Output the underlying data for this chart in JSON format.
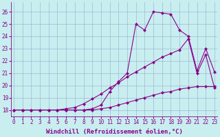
{
  "xlabel": "Windchill (Refroidissement éolien,°C)",
  "background_color": "#c8eef0",
  "line_color": "#880088",
  "x_ticks": [
    0,
    1,
    2,
    3,
    4,
    5,
    6,
    7,
    8,
    9,
    10,
    11,
    12,
    13,
    14,
    15,
    16,
    17,
    18,
    19,
    20,
    21,
    22,
    23
  ],
  "ylim": [
    17.5,
    26.8
  ],
  "xlim": [
    -0.3,
    23.3
  ],
  "yticks": [
    18,
    19,
    20,
    21,
    22,
    23,
    24,
    25,
    26
  ],
  "line_bottom_x": [
    0,
    1,
    2,
    3,
    4,
    5,
    6,
    7,
    8,
    9,
    10,
    11,
    12,
    13,
    14,
    15,
    16,
    17,
    18,
    19,
    20,
    21,
    22,
    23
  ],
  "line_bottom_y": [
    18.0,
    18.0,
    18.0,
    18.0,
    18.0,
    18.0,
    18.0,
    18.0,
    18.0,
    18.0,
    18.1,
    18.2,
    18.4,
    18.6,
    18.8,
    19.0,
    19.2,
    19.4,
    19.5,
    19.7,
    19.8,
    19.9,
    19.9,
    19.9
  ],
  "line_diag_x": [
    0,
    1,
    2,
    3,
    4,
    5,
    6,
    7,
    8,
    9,
    10,
    11,
    12,
    13,
    14,
    15,
    16,
    17,
    18,
    19,
    20,
    21,
    22,
    23
  ],
  "line_diag_y": [
    18.0,
    18.0,
    18.0,
    18.0,
    18.0,
    18.0,
    18.1,
    18.2,
    18.5,
    18.9,
    19.3,
    19.8,
    20.2,
    20.7,
    21.1,
    21.5,
    21.9,
    22.3,
    22.6,
    22.9,
    23.8,
    21.0,
    22.5,
    19.8
  ],
  "line_peak_x": [
    0,
    1,
    2,
    3,
    4,
    5,
    6,
    7,
    8,
    9,
    10,
    11,
    12,
    13,
    14,
    15,
    16,
    17,
    18,
    19,
    20,
    21,
    22,
    23
  ],
  "line_peak_y": [
    18.0,
    18.0,
    18.0,
    18.0,
    18.0,
    18.0,
    18.0,
    18.0,
    18.0,
    18.1,
    18.4,
    19.5,
    20.3,
    21.0,
    25.0,
    24.5,
    26.0,
    25.9,
    25.8,
    24.5,
    24.0,
    21.2,
    23.0,
    21.1
  ],
  "grid_color": "#99aacc",
  "tick_fontsize": 5.5,
  "xlabel_fontsize": 6.5
}
